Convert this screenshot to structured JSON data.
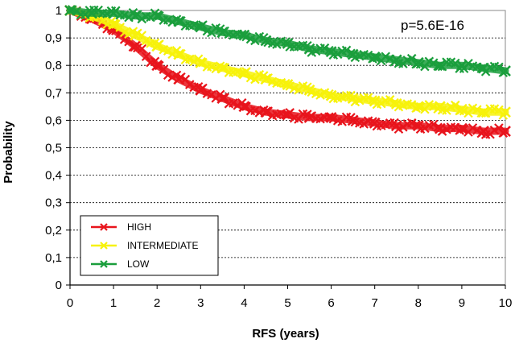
{
  "chart_data": {
    "type": "line",
    "title": "",
    "xlabel": "RFS (years)",
    "ylabel": "Probability",
    "xlim": [
      0,
      10
    ],
    "ylim": [
      0,
      1
    ],
    "x_ticks": [
      "0",
      "1",
      "2",
      "3",
      "4",
      "5",
      "6",
      "7",
      "8",
      "9",
      "10"
    ],
    "y_ticks": [
      "0",
      "0,1",
      "0,2",
      "0,3",
      "0,4",
      "0,5",
      "0,6",
      "0,7",
      "0,8",
      "0,9",
      "1"
    ],
    "grid": "horizontal dashed",
    "legend_position": "bottom-left",
    "annotation": "p=5.6E-16",
    "series": [
      {
        "name": "HIGH",
        "color": "#e8141c",
        "x": [
          0,
          0.5,
          1,
          1.5,
          2,
          2.5,
          3,
          3.5,
          4,
          4.5,
          5,
          5.5,
          6,
          6.5,
          7,
          7.5,
          8,
          8.5,
          9,
          9.5,
          10
        ],
        "values": [
          1.0,
          0.97,
          0.93,
          0.87,
          0.8,
          0.75,
          0.71,
          0.68,
          0.65,
          0.63,
          0.62,
          0.61,
          0.61,
          0.6,
          0.59,
          0.58,
          0.58,
          0.57,
          0.57,
          0.56,
          0.56
        ]
      },
      {
        "name": "INTERMEDIATE",
        "color": "#f7f20a",
        "x": [
          0,
          0.5,
          1,
          1.5,
          2,
          2.5,
          3,
          3.5,
          4,
          4.5,
          5,
          5.5,
          6,
          6.5,
          7,
          7.5,
          8,
          8.5,
          9,
          9.5,
          10
        ],
        "values": [
          1.0,
          0.98,
          0.95,
          0.91,
          0.87,
          0.84,
          0.81,
          0.79,
          0.77,
          0.75,
          0.73,
          0.71,
          0.69,
          0.68,
          0.67,
          0.66,
          0.65,
          0.65,
          0.64,
          0.63,
          0.63
        ]
      },
      {
        "name": "LOW",
        "color": "#1a9e3c",
        "x": [
          0,
          0.5,
          1,
          1.5,
          2,
          2.5,
          3,
          3.5,
          4,
          4.5,
          5,
          5.5,
          6,
          6.5,
          7,
          7.5,
          8,
          8.5,
          9,
          9.5,
          10
        ],
        "values": [
          1.0,
          0.99,
          0.99,
          0.98,
          0.98,
          0.96,
          0.94,
          0.92,
          0.91,
          0.89,
          0.88,
          0.86,
          0.85,
          0.84,
          0.83,
          0.82,
          0.81,
          0.8,
          0.8,
          0.79,
          0.78
        ]
      }
    ]
  }
}
